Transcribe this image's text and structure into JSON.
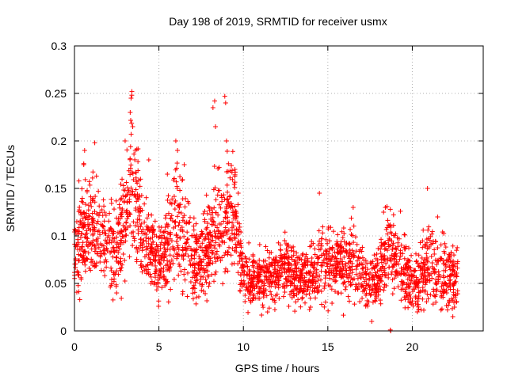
{
  "chart_data": {
    "type": "scatter",
    "title": "Day 198 of 2019, SRMTID for receiver usmx",
    "xlabel": "GPS time / hours",
    "ylabel": "SRMTID / TECUs",
    "xlim": [
      0,
      24.2
    ],
    "ylim": [
      0,
      0.3
    ],
    "xticks": [
      0,
      5,
      10,
      15,
      20
    ],
    "yticks": [
      0,
      0.05,
      0.1,
      0.15,
      0.2,
      0.25,
      0.3
    ],
    "ytick_labels": [
      "0",
      "0.05",
      "0.1",
      "0.15",
      "0.2",
      "0.25",
      "0.3"
    ],
    "grid": true,
    "marker": "+",
    "color": "#ff0000",
    "series": [
      {
        "name": "SRMTID",
        "envelope": {
          "hours": [
            0.0,
            0.5,
            1.0,
            1.5,
            2.0,
            2.5,
            3.0,
            3.3,
            3.6,
            4.0,
            4.5,
            5.0,
            5.5,
            6.0,
            6.5,
            7.0,
            7.5,
            8.0,
            8.5,
            9.0,
            9.5,
            10.0,
            10.5,
            11.0,
            11.5,
            12.0,
            12.5,
            13.0,
            13.5,
            14.0,
            14.5,
            15.0,
            15.5,
            16.0,
            16.5,
            17.0,
            17.5,
            18.0,
            18.5,
            19.0,
            19.5,
            20.0,
            20.5,
            21.0,
            21.5,
            22.0,
            22.5
          ],
          "median": [
            0.075,
            0.11,
            0.105,
            0.1,
            0.085,
            0.08,
            0.12,
            0.15,
            0.14,
            0.1,
            0.085,
            0.075,
            0.085,
            0.11,
            0.1,
            0.075,
            0.07,
            0.09,
            0.115,
            0.12,
            0.13,
            0.06,
            0.055,
            0.05,
            0.055,
            0.06,
            0.065,
            0.06,
            0.055,
            0.06,
            0.065,
            0.075,
            0.07,
            0.075,
            0.07,
            0.06,
            0.055,
            0.06,
            0.09,
            0.075,
            0.06,
            0.055,
            0.05,
            0.075,
            0.065,
            0.06,
            0.055
          ],
          "spread": [
            0.03,
            0.04,
            0.035,
            0.035,
            0.03,
            0.035,
            0.045,
            0.05,
            0.05,
            0.035,
            0.03,
            0.03,
            0.035,
            0.045,
            0.04,
            0.03,
            0.03,
            0.035,
            0.045,
            0.045,
            0.04,
            0.025,
            0.02,
            0.02,
            0.02,
            0.02,
            0.025,
            0.02,
            0.02,
            0.02,
            0.025,
            0.03,
            0.025,
            0.03,
            0.025,
            0.025,
            0.02,
            0.025,
            0.03,
            0.025,
            0.025,
            0.02,
            0.025,
            0.03,
            0.025,
            0.025,
            0.025
          ]
        },
        "peaks": [
          {
            "x": 0.55,
            "y": 0.175
          },
          {
            "x": 0.6,
            "y": 0.19
          },
          {
            "x": 1.3,
            "y": 0.163
          },
          {
            "x": 1.2,
            "y": 0.198
          },
          {
            "x": 3.0,
            "y": 0.2
          },
          {
            "x": 3.3,
            "y": 0.23
          },
          {
            "x": 3.35,
            "y": 0.245
          },
          {
            "x": 3.4,
            "y": 0.252
          },
          {
            "x": 3.45,
            "y": 0.215
          },
          {
            "x": 3.6,
            "y": 0.19
          },
          {
            "x": 4.4,
            "y": 0.18
          },
          {
            "x": 5.5,
            "y": 0.165
          },
          {
            "x": 6.0,
            "y": 0.2
          },
          {
            "x": 6.1,
            "y": 0.19
          },
          {
            "x": 6.5,
            "y": 0.175
          },
          {
            "x": 8.2,
            "y": 0.235
          },
          {
            "x": 8.3,
            "y": 0.242
          },
          {
            "x": 8.35,
            "y": 0.215
          },
          {
            "x": 8.9,
            "y": 0.247
          },
          {
            "x": 8.95,
            "y": 0.24
          },
          {
            "x": 9.0,
            "y": 0.2
          },
          {
            "x": 9.5,
            "y": 0.17
          },
          {
            "x": 14.5,
            "y": 0.145
          },
          {
            "x": 16.5,
            "y": 0.13
          },
          {
            "x": 18.3,
            "y": 0.125
          },
          {
            "x": 18.7,
            "y": 0.128
          },
          {
            "x": 19.3,
            "y": 0.126
          },
          {
            "x": 20.9,
            "y": 0.15
          },
          {
            "x": 21.5,
            "y": 0.12
          },
          {
            "x": 17.6,
            "y": 0.01
          },
          {
            "x": 18.7,
            "y": 0.001
          },
          {
            "x": 18.72,
            "y": 0.0
          },
          {
            "x": 22.4,
            "y": 0.015
          },
          {
            "x": 22.5,
            "y": 0.025
          },
          {
            "x": 21.7,
            "y": 0.022
          },
          {
            "x": 20.3,
            "y": 0.02
          }
        ]
      }
    ]
  }
}
